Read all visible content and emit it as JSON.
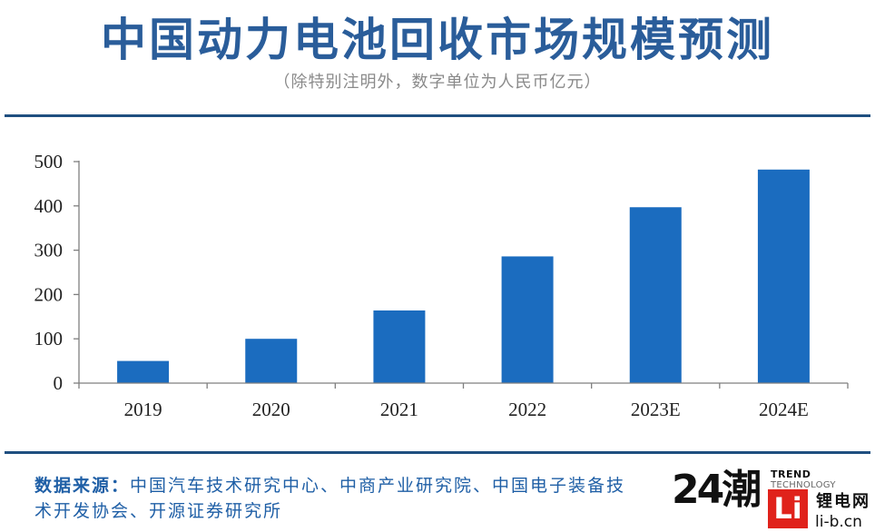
{
  "colors": {
    "title": "#2a5d9a",
    "subtitle": "#8a8a8a",
    "bar": "#1b6cbf",
    "axis": "#7f7f7f",
    "rule": "#1f4f80",
    "source": "#1f5fa6",
    "logo_red": "#e0221b"
  },
  "chart_data": {
    "type": "bar",
    "title": "中国动力电池回收市场规模预测",
    "subtitle": "（除特别注明外，数字单位为人民币亿元）",
    "categories": [
      "2019",
      "2020",
      "2021",
      "2022",
      "2023E",
      "2024E"
    ],
    "values": [
      50,
      100,
      164,
      286,
      397,
      482
    ],
    "ylim": [
      0,
      500
    ],
    "yticks": [
      0,
      100,
      200,
      300,
      400,
      500
    ],
    "grid": false,
    "legend": "none"
  },
  "source": {
    "label": "数据来源：",
    "text": "中国汽车技术研究中心、中商产业研究院、中国电子装备技术开发协会、开源证券研究所"
  },
  "logos": {
    "brand_24": "24潮",
    "trend": "TREND",
    "technology": "TECHNOLOGY",
    "li_mark": "Li",
    "site_name": "锂电网",
    "site_url": "li-b.cn"
  }
}
